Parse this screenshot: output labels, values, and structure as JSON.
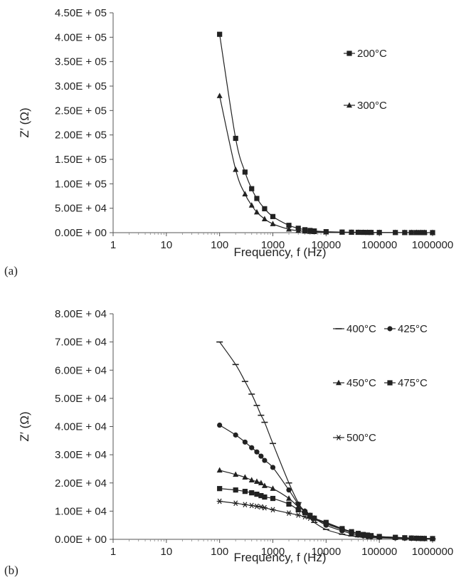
{
  "chart_data": [
    {
      "type": "line",
      "panel_label": "(a)",
      "xlabel": "Frequency, f (Hz)",
      "ylabel": "Z′ (Ω)",
      "x_scale": "log",
      "xlim": [
        1,
        1000000
      ],
      "ylim": [
        0,
        450000
      ],
      "x_ticks": [
        1,
        10,
        100,
        1000,
        10000,
        100000,
        1000000
      ],
      "x_tick_labels": [
        "1",
        "10",
        "100",
        "1000",
        "10000",
        "100000",
        "1000000"
      ],
      "y_ticks": [
        0,
        50000,
        100000,
        150000,
        200000,
        250000,
        300000,
        350000,
        400000,
        450000
      ],
      "y_tick_labels": [
        "0.00E + 00",
        "5.00E + 04",
        "1.00E + 05",
        "1.50E + 05",
        "2.00E + 05",
        "2.50E + 05",
        "3.00E + 05",
        "3.50E + 05",
        "4.00E + 05",
        "4.50E + 05"
      ],
      "grid": false,
      "legend_position": "right",
      "series": [
        {
          "name": "200°C",
          "marker": "square",
          "x": [
            100,
            200,
            300,
            400,
            500,
            700,
            1000,
            2000,
            3000,
            4000,
            5000,
            6000,
            10000,
            20000,
            30000,
            40000,
            50000,
            60000,
            70000,
            100000,
            200000,
            300000,
            400000,
            500000,
            600000,
            700000,
            1000000
          ],
          "y": [
            406000,
            193000,
            124000,
            90000,
            70000,
            49000,
            33000,
            15000,
            9000,
            6000,
            4500,
            3500,
            2000,
            1200,
            900,
            700,
            600,
            500,
            450,
            400,
            300,
            250,
            200,
            180,
            150,
            130,
            100
          ]
        },
        {
          "name": "300°C",
          "marker": "triangle",
          "x": [
            100,
            200,
            300,
            400,
            500,
            700,
            1000,
            2000,
            3000,
            4000,
            5000,
            6000,
            10000,
            20000,
            30000,
            40000,
            50000,
            60000,
            70000,
            100000,
            200000,
            300000,
            400000,
            500000,
            600000,
            700000,
            1000000
          ],
          "y": [
            280000,
            129000,
            79000,
            56000,
            42000,
            28000,
            18000,
            7000,
            4000,
            2800,
            2200,
            1800,
            1000,
            600,
            450,
            350,
            300,
            250,
            220,
            200,
            150,
            120,
            100,
            90,
            80,
            70,
            60
          ]
        }
      ]
    },
    {
      "type": "line",
      "panel_label": "(b)",
      "xlabel": "Frequency, f (Hz)",
      "ylabel": "Z′ (Ω)",
      "x_scale": "log",
      "xlim": [
        1,
        1000000
      ],
      "ylim": [
        0,
        80000
      ],
      "x_ticks": [
        1,
        10,
        100,
        1000,
        10000,
        100000,
        1000000
      ],
      "x_tick_labels": [
        "1",
        "10",
        "100",
        "1000",
        "10000",
        "100000",
        "1000000"
      ],
      "y_ticks": [
        0,
        10000,
        20000,
        30000,
        40000,
        50000,
        60000,
        70000,
        80000
      ],
      "y_tick_labels": [
        "0.00E + 00",
        "1.00E + 04",
        "2.00E + 04",
        "3.00E + 04",
        "4.00E + 04",
        "5.00E + 04",
        "6.00E + 04",
        "7.00E + 04",
        "8.00E + 04"
      ],
      "grid": false,
      "legend_position": "right",
      "series": [
        {
          "name": "400°C",
          "marker": "dash",
          "x": [
            100,
            200,
            300,
            400,
            500,
            600,
            700,
            1000,
            2000,
            3000,
            4000,
            5000,
            6000,
            10000,
            20000,
            30000,
            40000,
            50000,
            60000,
            70000,
            100000,
            200000,
            300000,
            400000,
            500000,
            600000,
            700000,
            1000000
          ],
          "y": [
            70000,
            62000,
            56000,
            51500,
            47500,
            44000,
            41500,
            34000,
            20000,
            13000,
            9500,
            7500,
            6000,
            3500,
            1800,
            1200,
            900,
            800,
            700,
            600,
            500,
            350,
            300,
            250,
            200,
            180,
            160,
            120
          ]
        },
        {
          "name": "425°C",
          "marker": "circle",
          "x": [
            100,
            200,
            300,
            400,
            500,
            600,
            700,
            1000,
            2000,
            3000,
            4000,
            5000,
            6000,
            10000,
            20000,
            30000,
            40000,
            50000,
            60000,
            70000,
            100000,
            200000,
            300000,
            400000,
            500000,
            600000,
            700000,
            1000000
          ],
          "y": [
            40500,
            37000,
            34500,
            32500,
            31000,
            29500,
            28000,
            25500,
            17500,
            12500,
            10000,
            8500,
            7500,
            5000,
            3000,
            2000,
            1500,
            1200,
            1000,
            900,
            700,
            500,
            400,
            350,
            300,
            250,
            220,
            180
          ]
        },
        {
          "name": "450°C",
          "marker": "triangle",
          "x": [
            100,
            200,
            300,
            400,
            500,
            600,
            700,
            1000,
            2000,
            3000,
            4000,
            5000,
            6000,
            10000,
            20000,
            30000,
            40000,
            50000,
            60000,
            70000,
            100000,
            200000,
            300000,
            400000,
            500000,
            600000,
            700000,
            1000000
          ],
          "y": [
            24500,
            23000,
            22000,
            21000,
            20500,
            20000,
            19000,
            18000,
            14500,
            11500,
            10000,
            8500,
            7500,
            5500,
            3500,
            2500,
            2000,
            1600,
            1400,
            1200,
            900,
            600,
            500,
            400,
            350,
            300,
            280,
            220
          ]
        },
        {
          "name": "475°C",
          "marker": "square",
          "x": [
            100,
            200,
            300,
            400,
            500,
            600,
            700,
            1000,
            2000,
            3000,
            4000,
            5000,
            6000,
            10000,
            20000,
            30000,
            40000,
            50000,
            60000,
            70000,
            100000,
            200000,
            300000,
            400000,
            500000,
            600000,
            700000,
            1000000
          ],
          "y": [
            18000,
            17500,
            17000,
            16500,
            16000,
            15500,
            15000,
            14500,
            12500,
            10500,
            9500,
            8500,
            7500,
            6000,
            3800,
            2700,
            2100,
            1700,
            1500,
            1300,
            1000,
            700,
            550,
            450,
            380,
            330,
            300,
            250
          ]
        },
        {
          "name": "500°C",
          "marker": "asterisk",
          "x": [
            100,
            200,
            300,
            400,
            500,
            600,
            700,
            1000,
            2000,
            3000,
            4000,
            5000,
            6000,
            10000,
            20000,
            30000,
            40000,
            50000,
            60000,
            70000,
            100000,
            200000,
            300000,
            400000,
            500000,
            600000,
            700000,
            1000000
          ],
          "y": [
            13500,
            12800,
            12300,
            12000,
            11700,
            11500,
            11200,
            10500,
            9300,
            8600,
            8000,
            7500,
            7000,
            5800,
            3700,
            2700,
            2100,
            1700,
            1500,
            1300,
            1000,
            700,
            550,
            450,
            380,
            330,
            300,
            250
          ]
        }
      ]
    }
  ]
}
